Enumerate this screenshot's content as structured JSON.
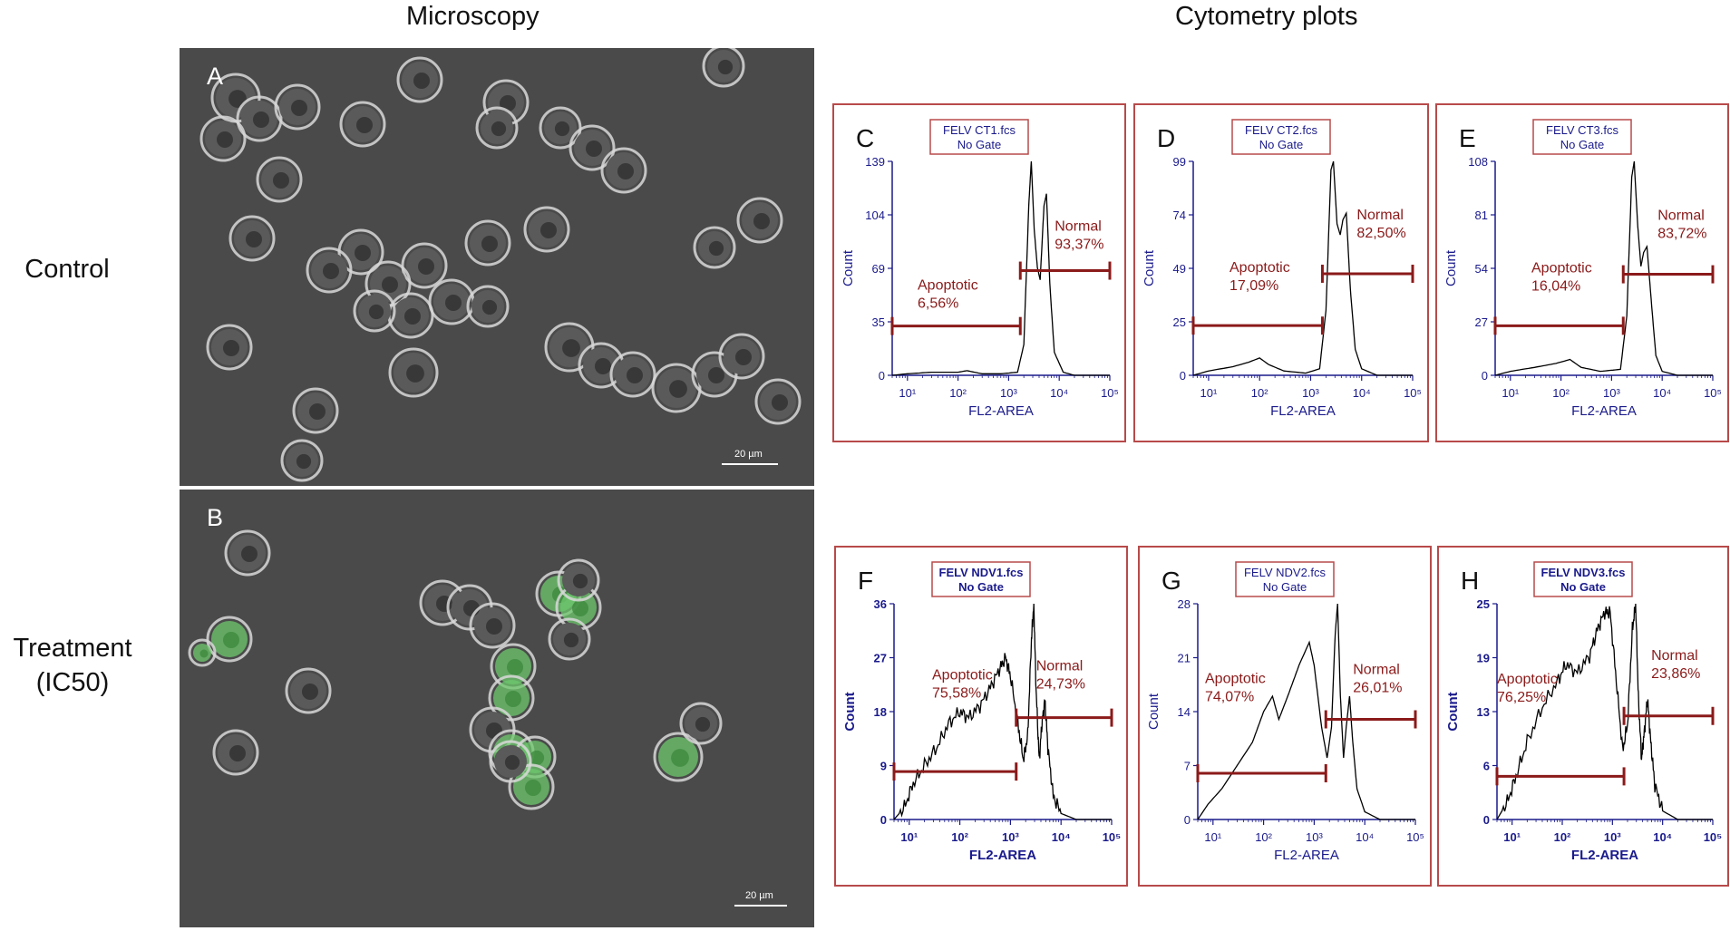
{
  "headers": {
    "microscopy": "Microscopy",
    "cytometry": "Cytometry plots"
  },
  "rows": {
    "control": "Control",
    "treatment_line1": "Treatment",
    "treatment_line2": "(IC50)"
  },
  "micro_panels": [
    {
      "label": "A",
      "scale": "20 µm"
    },
    {
      "label": "B",
      "scale": "20 µm"
    }
  ],
  "colors": {
    "gate": "#8b1a1a",
    "axis": "#1a1a8c",
    "frame": "#b84a4a",
    "trace": "#000000",
    "fluor": "#6ec86e"
  },
  "chart_data": [
    {
      "type": "line",
      "panel": "C",
      "file": "FELV CT1.fcs",
      "gate": "No Gate",
      "xlabel": "FL2-AREA",
      "ylabel": "Count",
      "x_scale": "log",
      "xlim": [
        5,
        100000
      ],
      "ylim": [
        0,
        139
      ],
      "yticks": [
        "0",
        "35",
        "69",
        "104",
        "139"
      ],
      "xticks": [
        "10¹",
        "10²",
        "10³",
        "10⁴",
        "10⁵"
      ],
      "bold": false,
      "curve": [
        [
          5,
          0
        ],
        [
          10,
          1
        ],
        [
          30,
          2
        ],
        [
          100,
          2
        ],
        [
          150,
          3
        ],
        [
          300,
          1
        ],
        [
          700,
          1
        ],
        [
          1500,
          2
        ],
        [
          2000,
          20
        ],
        [
          2500,
          110
        ],
        [
          2800,
          139
        ],
        [
          3200,
          95
        ],
        [
          3700,
          70
        ],
        [
          4200,
          62
        ],
        [
          5000,
          110
        ],
        [
          5600,
          118
        ],
        [
          6500,
          60
        ],
        [
          8000,
          15
        ],
        [
          12000,
          2
        ],
        [
          20000,
          0
        ],
        [
          100000,
          0
        ]
      ],
      "apoptotic": {
        "label": "Apoptotic",
        "value": "6,56%",
        "x0": 5,
        "x1": 1700,
        "y": 32
      },
      "normal": {
        "label": "Normal",
        "value": "93,37%",
        "x0": 1700,
        "x1": 100000,
        "y": 68
      }
    },
    {
      "type": "line",
      "panel": "D",
      "file": "FELV CT2.fcs",
      "gate": "No Gate",
      "xlabel": "FL2-AREA",
      "ylabel": "Count",
      "x_scale": "log",
      "xlim": [
        5,
        100000
      ],
      "ylim": [
        0,
        99
      ],
      "yticks": [
        "0",
        "25",
        "49",
        "74",
        "99"
      ],
      "xticks": [
        "10¹",
        "10²",
        "10³",
        "10⁴",
        "10⁵"
      ],
      "bold": false,
      "curve": [
        [
          5,
          0
        ],
        [
          10,
          2
        ],
        [
          30,
          4
        ],
        [
          60,
          6
        ],
        [
          100,
          8
        ],
        [
          150,
          5
        ],
        [
          300,
          2
        ],
        [
          800,
          1
        ],
        [
          1500,
          3
        ],
        [
          2000,
          30
        ],
        [
          2500,
          95
        ],
        [
          2800,
          99
        ],
        [
          3300,
          70
        ],
        [
          3800,
          65
        ],
        [
          4300,
          72
        ],
        [
          5000,
          75
        ],
        [
          6000,
          40
        ],
        [
          7500,
          12
        ],
        [
          10000,
          3
        ],
        [
          20000,
          0
        ],
        [
          100000,
          0
        ]
      ],
      "apoptotic": {
        "label": "Apoptotic",
        "value": "17,09%",
        "x0": 5,
        "x1": 1700,
        "y": 23
      },
      "normal": {
        "label": "Normal",
        "value": "82,50%",
        "x0": 1700,
        "x1": 100000,
        "y": 47
      }
    },
    {
      "type": "line",
      "panel": "E",
      "file": "FELV CT3.fcs",
      "gate": "No Gate",
      "xlabel": "FL2-AREA",
      "ylabel": "Count",
      "x_scale": "log",
      "xlim": [
        5,
        100000
      ],
      "ylim": [
        0,
        108
      ],
      "yticks": [
        "0",
        "27",
        "54",
        "81",
        "108"
      ],
      "xticks": [
        "10¹",
        "10²",
        "10³",
        "10⁴",
        "10⁵"
      ],
      "bold": false,
      "curve": [
        [
          5,
          0
        ],
        [
          10,
          2
        ],
        [
          30,
          4
        ],
        [
          80,
          6
        ],
        [
          150,
          8
        ],
        [
          250,
          4
        ],
        [
          600,
          2
        ],
        [
          1500,
          3
        ],
        [
          2000,
          30
        ],
        [
          2500,
          100
        ],
        [
          2800,
          108
        ],
        [
          3300,
          75
        ],
        [
          3800,
          55
        ],
        [
          4300,
          62
        ],
        [
          5000,
          65
        ],
        [
          6200,
          35
        ],
        [
          7500,
          10
        ],
        [
          10000,
          2
        ],
        [
          20000,
          0
        ],
        [
          100000,
          0
        ]
      ],
      "apoptotic": {
        "label": "Apoptotic",
        "value": "16,04%",
        "x0": 5,
        "x1": 1700,
        "y": 25
      },
      "normal": {
        "label": "Normal",
        "value": "83,72%",
        "x0": 1700,
        "x1": 100000,
        "y": 51
      }
    },
    {
      "type": "line",
      "panel": "F",
      "file": "FELV NDV1.fcs",
      "gate": "No Gate",
      "xlabel": "FL2-AREA",
      "ylabel": "Count",
      "x_scale": "log",
      "xlim": [
        5,
        100000
      ],
      "ylim": [
        0,
        36
      ],
      "yticks": [
        "0",
        "9",
        "18",
        "27",
        "36"
      ],
      "xticks": [
        "10¹",
        "10²",
        "10³",
        "10⁴",
        "10⁵"
      ],
      "bold": true,
      "curve": [
        [
          5,
          0
        ],
        [
          8,
          2
        ],
        [
          12,
          6
        ],
        [
          20,
          9
        ],
        [
          35,
          12
        ],
        [
          60,
          16
        ],
        [
          100,
          18
        ],
        [
          150,
          17
        ],
        [
          250,
          19
        ],
        [
          400,
          22
        ],
        [
          600,
          25
        ],
        [
          800,
          27
        ],
        [
          1000,
          24
        ],
        [
          1400,
          16
        ],
        [
          1800,
          10
        ],
        [
          2200,
          14
        ],
        [
          2600,
          30
        ],
        [
          2900,
          36
        ],
        [
          3200,
          22
        ],
        [
          3700,
          10
        ],
        [
          4200,
          16
        ],
        [
          4800,
          20
        ],
        [
          5500,
          12
        ],
        [
          7000,
          4
        ],
        [
          10000,
          1
        ],
        [
          20000,
          0
        ],
        [
          100000,
          0
        ]
      ],
      "apoptotic": {
        "label": "Apoptotic",
        "value": "75,58%",
        "x0": 5,
        "x1": 1300,
        "y": 8
      },
      "normal": {
        "label": "Normal",
        "value": "24,73%",
        "x0": 1300,
        "x1": 100000,
        "y": 17
      }
    },
    {
      "type": "line",
      "panel": "G",
      "file": "FELV NDV2.fcs",
      "gate": "No Gate",
      "xlabel": "FL2-AREA",
      "ylabel": "Count",
      "x_scale": "log",
      "xlim": [
        5,
        100000
      ],
      "ylim": [
        0,
        28
      ],
      "yticks": [
        "0",
        "7",
        "14",
        "21",
        "28"
      ],
      "xticks": [
        "10¹",
        "10²",
        "10³",
        "10⁴",
        "10⁵"
      ],
      "bold": false,
      "curve": [
        [
          5,
          0
        ],
        [
          8,
          2
        ],
        [
          15,
          4
        ],
        [
          30,
          7
        ],
        [
          60,
          10
        ],
        [
          100,
          14
        ],
        [
          150,
          16
        ],
        [
          200,
          13
        ],
        [
          300,
          16
        ],
        [
          500,
          20
        ],
        [
          800,
          23
        ],
        [
          1000,
          20
        ],
        [
          1400,
          12
        ],
        [
          1800,
          8
        ],
        [
          2200,
          12
        ],
        [
          2600,
          24
        ],
        [
          2900,
          28
        ],
        [
          3300,
          16
        ],
        [
          3800,
          8
        ],
        [
          4300,
          12
        ],
        [
          5000,
          16
        ],
        [
          5800,
          10
        ],
        [
          7000,
          4
        ],
        [
          10000,
          1
        ],
        [
          20000,
          0
        ],
        [
          100000,
          0
        ]
      ],
      "apoptotic": {
        "label": "Apoptotic",
        "value": "74,07%",
        "x0": 5,
        "x1": 1700,
        "y": 6
      },
      "normal": {
        "label": "Normal",
        "value": "26,01%",
        "x0": 1700,
        "x1": 100000,
        "y": 13
      }
    },
    {
      "type": "line",
      "panel": "H",
      "file": "FELV NDV3.fcs",
      "gate": "No Gate",
      "xlabel": "FL2-AREA",
      "ylabel": "Count",
      "x_scale": "log",
      "xlim": [
        5,
        100000
      ],
      "ylim": [
        0,
        25
      ],
      "yticks": [
        "0",
        "6",
        "13",
        "19",
        "25"
      ],
      "xticks": [
        "10¹",
        "10²",
        "10³",
        "10⁴",
        "10⁵"
      ],
      "bold": true,
      "curve": [
        [
          5,
          0
        ],
        [
          8,
          2
        ],
        [
          12,
          5
        ],
        [
          20,
          9
        ],
        [
          40,
          13
        ],
        [
          80,
          16
        ],
        [
          120,
          18
        ],
        [
          200,
          17
        ],
        [
          350,
          19
        ],
        [
          500,
          22
        ],
        [
          700,
          24
        ],
        [
          900,
          24
        ],
        [
          1200,
          16
        ],
        [
          1600,
          8
        ],
        [
          2000,
          11
        ],
        [
          2500,
          22
        ],
        [
          2900,
          25
        ],
        [
          3300,
          14
        ],
        [
          3800,
          7
        ],
        [
          4300,
          10
        ],
        [
          5000,
          14
        ],
        [
          5800,
          9
        ],
        [
          7000,
          4
        ],
        [
          10000,
          1
        ],
        [
          20000,
          0
        ],
        [
          100000,
          0
        ]
      ],
      "apoptotic": {
        "label": "Apoptotic",
        "value": "76,25%",
        "x0": 5,
        "x1": 1700,
        "y": 5
      },
      "normal": {
        "label": "Normal",
        "value": "23,86%",
        "x0": 1700,
        "x1": 100000,
        "y": 12
      }
    }
  ]
}
